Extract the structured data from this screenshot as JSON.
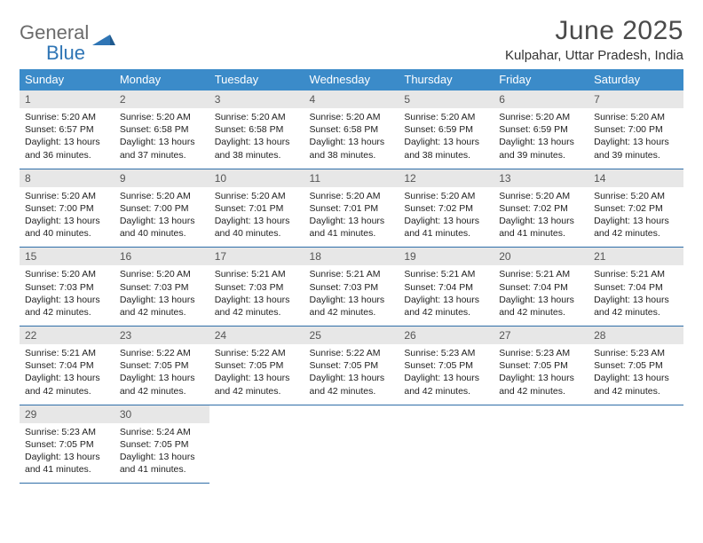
{
  "brand": {
    "part1": "General",
    "part2": "Blue"
  },
  "title": "June 2025",
  "location": "Kulpahar, Uttar Pradesh, India",
  "colors": {
    "header_bg": "#3b8bc9",
    "header_text": "#ffffff",
    "daynum_bg": "#e7e7e7",
    "rule": "#2f6ea8",
    "logo_gray": "#6b6b6b",
    "logo_blue": "#2f75b5",
    "body_text": "#222222"
  },
  "typography": {
    "title_fontsize": 30,
    "location_fontsize": 15,
    "dow_fontsize": 13,
    "daynum_fontsize": 12,
    "body_fontsize": 10.5,
    "font_family": "Arial"
  },
  "days_of_week": [
    "Sunday",
    "Monday",
    "Tuesday",
    "Wednesday",
    "Thursday",
    "Friday",
    "Saturday"
  ],
  "weeks": [
    [
      {
        "n": "1",
        "sr": "Sunrise: 5:20 AM",
        "ss": "Sunset: 6:57 PM",
        "dl": "Daylight: 13 hours and 36 minutes."
      },
      {
        "n": "2",
        "sr": "Sunrise: 5:20 AM",
        "ss": "Sunset: 6:58 PM",
        "dl": "Daylight: 13 hours and 37 minutes."
      },
      {
        "n": "3",
        "sr": "Sunrise: 5:20 AM",
        "ss": "Sunset: 6:58 PM",
        "dl": "Daylight: 13 hours and 38 minutes."
      },
      {
        "n": "4",
        "sr": "Sunrise: 5:20 AM",
        "ss": "Sunset: 6:58 PM",
        "dl": "Daylight: 13 hours and 38 minutes."
      },
      {
        "n": "5",
        "sr": "Sunrise: 5:20 AM",
        "ss": "Sunset: 6:59 PM",
        "dl": "Daylight: 13 hours and 38 minutes."
      },
      {
        "n": "6",
        "sr": "Sunrise: 5:20 AM",
        "ss": "Sunset: 6:59 PM",
        "dl": "Daylight: 13 hours and 39 minutes."
      },
      {
        "n": "7",
        "sr": "Sunrise: 5:20 AM",
        "ss": "Sunset: 7:00 PM",
        "dl": "Daylight: 13 hours and 39 minutes."
      }
    ],
    [
      {
        "n": "8",
        "sr": "Sunrise: 5:20 AM",
        "ss": "Sunset: 7:00 PM",
        "dl": "Daylight: 13 hours and 40 minutes."
      },
      {
        "n": "9",
        "sr": "Sunrise: 5:20 AM",
        "ss": "Sunset: 7:00 PM",
        "dl": "Daylight: 13 hours and 40 minutes."
      },
      {
        "n": "10",
        "sr": "Sunrise: 5:20 AM",
        "ss": "Sunset: 7:01 PM",
        "dl": "Daylight: 13 hours and 40 minutes."
      },
      {
        "n": "11",
        "sr": "Sunrise: 5:20 AM",
        "ss": "Sunset: 7:01 PM",
        "dl": "Daylight: 13 hours and 41 minutes."
      },
      {
        "n": "12",
        "sr": "Sunrise: 5:20 AM",
        "ss": "Sunset: 7:02 PM",
        "dl": "Daylight: 13 hours and 41 minutes."
      },
      {
        "n": "13",
        "sr": "Sunrise: 5:20 AM",
        "ss": "Sunset: 7:02 PM",
        "dl": "Daylight: 13 hours and 41 minutes."
      },
      {
        "n": "14",
        "sr": "Sunrise: 5:20 AM",
        "ss": "Sunset: 7:02 PM",
        "dl": "Daylight: 13 hours and 42 minutes."
      }
    ],
    [
      {
        "n": "15",
        "sr": "Sunrise: 5:20 AM",
        "ss": "Sunset: 7:03 PM",
        "dl": "Daylight: 13 hours and 42 minutes."
      },
      {
        "n": "16",
        "sr": "Sunrise: 5:20 AM",
        "ss": "Sunset: 7:03 PM",
        "dl": "Daylight: 13 hours and 42 minutes."
      },
      {
        "n": "17",
        "sr": "Sunrise: 5:21 AM",
        "ss": "Sunset: 7:03 PM",
        "dl": "Daylight: 13 hours and 42 minutes."
      },
      {
        "n": "18",
        "sr": "Sunrise: 5:21 AM",
        "ss": "Sunset: 7:03 PM",
        "dl": "Daylight: 13 hours and 42 minutes."
      },
      {
        "n": "19",
        "sr": "Sunrise: 5:21 AM",
        "ss": "Sunset: 7:04 PM",
        "dl": "Daylight: 13 hours and 42 minutes."
      },
      {
        "n": "20",
        "sr": "Sunrise: 5:21 AM",
        "ss": "Sunset: 7:04 PM",
        "dl": "Daylight: 13 hours and 42 minutes."
      },
      {
        "n": "21",
        "sr": "Sunrise: 5:21 AM",
        "ss": "Sunset: 7:04 PM",
        "dl": "Daylight: 13 hours and 42 minutes."
      }
    ],
    [
      {
        "n": "22",
        "sr": "Sunrise: 5:21 AM",
        "ss": "Sunset: 7:04 PM",
        "dl": "Daylight: 13 hours and 42 minutes."
      },
      {
        "n": "23",
        "sr": "Sunrise: 5:22 AM",
        "ss": "Sunset: 7:05 PM",
        "dl": "Daylight: 13 hours and 42 minutes."
      },
      {
        "n": "24",
        "sr": "Sunrise: 5:22 AM",
        "ss": "Sunset: 7:05 PM",
        "dl": "Daylight: 13 hours and 42 minutes."
      },
      {
        "n": "25",
        "sr": "Sunrise: 5:22 AM",
        "ss": "Sunset: 7:05 PM",
        "dl": "Daylight: 13 hours and 42 minutes."
      },
      {
        "n": "26",
        "sr": "Sunrise: 5:23 AM",
        "ss": "Sunset: 7:05 PM",
        "dl": "Daylight: 13 hours and 42 minutes."
      },
      {
        "n": "27",
        "sr": "Sunrise: 5:23 AM",
        "ss": "Sunset: 7:05 PM",
        "dl": "Daylight: 13 hours and 42 minutes."
      },
      {
        "n": "28",
        "sr": "Sunrise: 5:23 AM",
        "ss": "Sunset: 7:05 PM",
        "dl": "Daylight: 13 hours and 42 minutes."
      }
    ],
    [
      {
        "n": "29",
        "sr": "Sunrise: 5:23 AM",
        "ss": "Sunset: 7:05 PM",
        "dl": "Daylight: 13 hours and 41 minutes."
      },
      {
        "n": "30",
        "sr": "Sunrise: 5:24 AM",
        "ss": "Sunset: 7:05 PM",
        "dl": "Daylight: 13 hours and 41 minutes."
      },
      null,
      null,
      null,
      null,
      null
    ]
  ]
}
